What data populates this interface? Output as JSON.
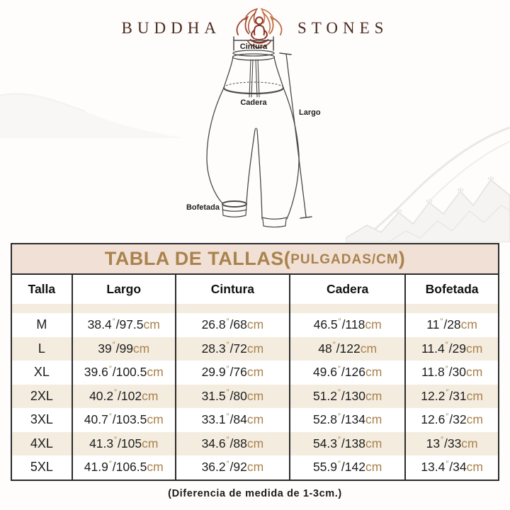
{
  "brand": {
    "name_left": "BUDDHA",
    "name_right": "STONES"
  },
  "diagram": {
    "labels": {
      "waist": "Cintura",
      "hip": "Cadera",
      "length": "Largo",
      "cuff": "Bofetada"
    }
  },
  "size_table": {
    "title_main": "TABLA DE TALLAS(",
    "title_units": "PULGADAS/CM",
    "title_close": ")",
    "columns": [
      "Talla",
      "Largo",
      "Cintura",
      "Cadera",
      "Bofetada"
    ],
    "units": {
      "inch": "″",
      "cm": "cm"
    },
    "rows": [
      {
        "size": "M",
        "values": [
          [
            "38.4",
            "97.5"
          ],
          [
            "26.8",
            "68"
          ],
          [
            "46.5",
            "118"
          ],
          [
            "11",
            "28"
          ]
        ]
      },
      {
        "size": "L",
        "values": [
          [
            "39",
            "99"
          ],
          [
            "28.3",
            "72"
          ],
          [
            "48",
            "122"
          ],
          [
            "11.4",
            "29"
          ]
        ]
      },
      {
        "size": "XL",
        "values": [
          [
            "39.6",
            "100.5"
          ],
          [
            "29.9",
            "76"
          ],
          [
            "49.6",
            "126"
          ],
          [
            "11.8",
            "30"
          ]
        ]
      },
      {
        "size": "2XL",
        "values": [
          [
            "40.2",
            "102"
          ],
          [
            "31.5",
            "80"
          ],
          [
            "51.2",
            "130"
          ],
          [
            "12.2",
            "31"
          ]
        ]
      },
      {
        "size": "3XL",
        "values": [
          [
            "40.7",
            "103.5"
          ],
          [
            "33.1",
            "84"
          ],
          [
            "52.8",
            "134"
          ],
          [
            "12.6",
            "32"
          ]
        ]
      },
      {
        "size": "4XL",
        "values": [
          [
            "41.3",
            "105"
          ],
          [
            "34.6",
            "88"
          ],
          [
            "54.3",
            "138"
          ],
          [
            "13",
            "33"
          ]
        ]
      },
      {
        "size": "5XL",
        "values": [
          [
            "41.9",
            "106.5"
          ],
          [
            "36.2",
            "92"
          ],
          [
            "55.9",
            "142"
          ],
          [
            "13.4",
            "34"
          ]
        ]
      }
    ]
  },
  "note": "(Diferencia de medida de 1-3cm.)",
  "colors": {
    "accent_gold": "#a9834e",
    "title_band_bg": "#f1e0d5",
    "row_beige": "#f4ecdf",
    "table_border": "#2b2b2b",
    "logo_brown": "#4b2a1e",
    "lotus_red": "#a0472c"
  }
}
